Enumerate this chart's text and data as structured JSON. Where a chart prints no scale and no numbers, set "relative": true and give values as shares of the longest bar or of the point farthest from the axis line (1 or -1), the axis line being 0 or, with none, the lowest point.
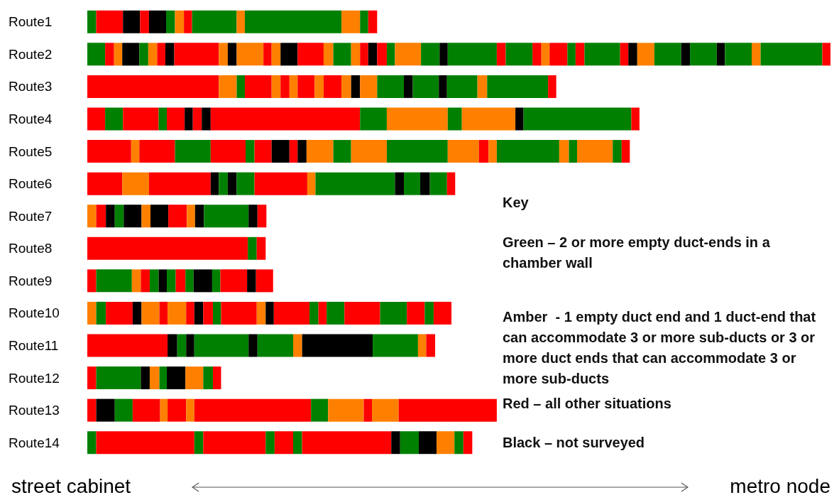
{
  "chart_data": {
    "type": "bar",
    "orientation": "horizontal",
    "stacked": true,
    "relative": true,
    "categories": [
      "Route1",
      "Route2",
      "Route3",
      "Route4",
      "Route5",
      "Route6",
      "Route7",
      "Route8",
      "Route9",
      "Route10",
      "Route11",
      "Route12",
      "Route13",
      "Route14"
    ],
    "annotations": [
      "Key",
      "Green – 2 or more empty duct-ends in a chamber wall",
      "Amber  - 1 empty duct end and 1 duct-end that can accommodate 3 or more sub-ducts or 3 or more duct ends that can accommodate 3 or more sub-ducts",
      "Red – all other situations",
      "Black – not surveyed",
      "street cabinet",
      "metro node"
    ],
    "series": [
      {
        "values": [
          0.012,
          0.024,
          0.177,
          0.024,
          0.059,
          0.047,
          0.012,
          0.216,
          0.012,
          0.012,
          0.108,
          0.012,
          0.012,
          0.012
        ],
        "colors": [
          "#008000",
          "#008000",
          "#ff0000",
          "#ff0000",
          "#ff0000",
          "#ff0000",
          "#ff8000",
          "#ff0000",
          "#ff0000",
          "#ff8000",
          "#ff0000",
          "#ff0000",
          "#ff0000",
          "#008000"
        ]
      },
      {
        "values": [
          0.036,
          0.012,
          0.024,
          0.024,
          0.011,
          0.036,
          0.013,
          0.012,
          0.048,
          0.013,
          0.013,
          0.06,
          0.025,
          0.132
        ],
        "colors": [
          "#ff0000",
          "#ff0000",
          "#ff8000",
          "#008000",
          "#ff8000",
          "#ff8000",
          "#ff0000",
          "#008000",
          "#008000",
          "#008000",
          "#000000",
          "#008000",
          "#000000",
          "#ff0000"
        ]
      },
      {
        "values": [
          0.023,
          0.011,
          0.011,
          0.048,
          0.048,
          0.083,
          0.012,
          0.012,
          0.012,
          0.036,
          0.012,
          0.012,
          0.024,
          0.012
        ],
        "colors": [
          "#000000",
          "#ff8000",
          "#008000",
          "#ff0000",
          "#ff0000",
          "#ff0000",
          "#000000",
          "#ff0000",
          "#ff8000",
          "#ff0000",
          "#008000",
          "#000000",
          "#008000",
          "#008000"
        ]
      },
      {
        "values": [
          0.012,
          0.023,
          0.036,
          0.011,
          0.048,
          0.011,
          0.012,
          null,
          0.012,
          0.012,
          0.011,
          0.013,
          0.037,
          0.084
        ],
        "colors": [
          "#ff0000",
          "#000000",
          "#ff0000",
          "#008000",
          "#008000",
          "#000000",
          "#008000",
          null,
          "#ff0000",
          "#000000",
          "#000000",
          "#ff8000",
          "#ff0000",
          "#ff0000"
        ]
      },
      {
        "values": [
          0.023,
          0.012,
          0.012,
          0.024,
          0.047,
          0.012,
          0.024,
          null,
          0.012,
          0.024,
          0.073,
          0.01,
          0.01,
          0.012
        ],
        "colors": [
          "#000000",
          "#008000",
          "#ff8000",
          "#ff0000",
          "#ff0000",
          "#008000",
          "#000000",
          null,
          "#008000",
          "#ff8000",
          "#008000",
          "#008000",
          "#ff8000",
          "#008000"
        ]
      },
      {
        "values": [
          0.012,
          0.012,
          0.012,
          0.011,
          0.012,
          0.012,
          0.012,
          null,
          0.011,
          0.011,
          0.012,
          0.025,
          0.025,
          0.025
        ],
        "colors": [
          "#008000",
          "#ff8000",
          "#ff0000",
          "#000000",
          "#008000",
          "#000000",
          "#ff8000",
          null,
          "#000000",
          "#ff0000",
          "#000000",
          "#000000",
          "#ff0000",
          "#ff0000"
        ]
      },
      {
        "values": [
          0.012,
          0.011,
          0.011,
          0.012,
          0.023,
          0.024,
          0.024,
          null,
          0.012,
          0.025,
          0.048,
          0.024,
          0.011,
          0.012
        ],
        "colors": [
          "#ff8000",
          "#ff0000",
          "#ff8000",
          "#ff0000",
          "#ff0000",
          "#008000",
          "#000000",
          null,
          "#008000",
          "#ff8000",
          "#008000",
          "#ff8000",
          "#ff8000",
          "#008000"
        ]
      },
      {
        "values": [
          0.011,
          0.012,
          0.023,
          0.012,
          0.024,
          0.071,
          0.025,
          null,
          0.013,
          0.011,
          0.012,
          0.013,
          0.157,
          0.12
        ],
        "colors": [
          "#ff0000",
          "#000000",
          "#ff0000",
          "#000000",
          "#000000",
          "#ff0000",
          "#ff0000",
          null,
          "#ff0000",
          "#ff0000",
          "#ff8000",
          "#008000",
          "#ff0000",
          "#ff0000"
        ]
      },
      {
        "values": [
          0.06,
          0.06,
          0.012,
          0.201,
          0.011,
          0.011,
          0.011,
          null,
          0.011,
          0.012,
          0.095,
          0.011,
          0.023,
          0.012
        ],
        "colors": [
          "#008000",
          "#ff0000",
          "#ff8000",
          "#ff0000",
          "#ff0000",
          "#ff8000",
          "#ff8000",
          null,
          "#008000",
          "#000000",
          "#000000",
          "#ff0000",
          "#008000",
          "#000000"
        ]
      },
      {
        "values": [
          0.011,
          0.012,
          0.024,
          0.036,
          0.012,
          0.107,
          0.012,
          null,
          0.025,
          0.013,
          0.061,
          null,
          0.048,
          0.025
        ],
        "colors": [
          "#ff8000",
          "#ff8000",
          "#ff0000",
          "#008000",
          "#000000",
          "#008000",
          "#000000",
          null,
          "#000000",
          "#ff0000",
          "#008000",
          null,
          "#ff8000",
          "#008000"
        ]
      },
      {
        "values": [
          0.13,
          0.012,
          0.013,
          0.082,
          0.036,
          0.012,
          0.06,
          null,
          0.011,
          0.011,
          0.011,
          null,
          0.011,
          0.024
        ],
        "colors": [
          "#008000",
          "#000000",
          "#ff8000",
          "#ff8000",
          "#ff8000",
          "#000000",
          "#008000",
          null,
          "#008000",
          "#008000",
          "#ff8000",
          null,
          "#ff0000",
          "#000000"
        ]
      },
      {
        "values": [
          0.025,
          0.036,
          0.012,
          0.019,
          0.024,
          0.022,
          0.012,
          null,
          0.036,
          0.048,
          0.012,
          null,
          0.036,
          0.024
        ],
        "colors": [
          "#ff8000",
          "#ff8000",
          "#000000",
          "#008000",
          "#008000",
          "#008000",
          "#000000",
          null,
          "#ff0000",
          "#ff0000",
          "#ff0000",
          null,
          "#ff8000",
          "#ff8000"
        ]
      },
      {
        "values": [
          0.011,
          0.011,
          0.023,
          0.072,
          0.048,
          0.013,
          0.012,
          null,
          0.012,
          0.012,
          null,
          null,
          0.132,
          0.012
        ],
        "colors": [
          "#008000",
          "#ff0000",
          "#ff8000",
          "#ff8000",
          "#ff8000",
          "#000000",
          "#ff0000",
          null,
          "#000000",
          "#ff8000",
          null,
          null,
          "#ff0000",
          "#008000"
        ]
      },
      {
        "values": [
          0.012,
          0.012,
          0.036,
          0.011,
          0.082,
          0.023,
          null,
          null,
          0.023,
          0.011,
          null,
          null,
          null,
          0.012
        ],
        "colors": [
          "#ff0000",
          "#ff8000",
          "#008000",
          "#000000",
          "#008000",
          "#008000",
          null,
          null,
          "#ff0000",
          "#000000",
          null,
          null,
          null,
          "#ff0000"
        ]
      },
      {
        "values": [
          null,
          0.023,
          0.012,
          0.145,
          0.042,
          0.011,
          null,
          null,
          null,
          0.048,
          null,
          null,
          null,
          null
        ],
        "colors": [
          null,
          "#000000",
          "#000000",
          "#008000",
          "#ff8000",
          "#ff0000",
          null,
          null,
          null,
          "#ff0000",
          null,
          null,
          null,
          null
        ]
      },
      {
        "values": [
          null,
          0.035,
          0.035,
          0.011,
          0.013,
          null,
          null,
          null,
          null,
          0.012,
          null,
          null,
          null,
          null
        ],
        "colors": [
          null,
          "#ff0000",
          "#008000",
          "#ff0000",
          "#ff0000",
          null,
          null,
          null,
          null,
          "#008000",
          null,
          null,
          null,
          null
        ]
      },
      {
        "values": [
          null,
          0.013,
          0.011,
          null,
          0.011,
          null,
          null,
          null,
          null,
          0.011,
          null,
          null,
          null,
          null
        ],
        "colors": [
          null,
          "#ff8000",
          "#000000",
          null,
          "#ff8000",
          null,
          null,
          null,
          null,
          "#ff0000",
          null,
          null,
          null,
          null
        ]
      },
      {
        "values": [
          null,
          0.024,
          0.041,
          null,
          0.084,
          null,
          null,
          null,
          null,
          0.024,
          null,
          null,
          null,
          null
        ],
        "colors": [
          null,
          "#008000",
          "#008000",
          null,
          "#008000",
          null,
          null,
          null,
          null,
          "#008000",
          null,
          null,
          null,
          null
        ]
      },
      {
        "values": [
          null,
          0.012,
          0.013,
          null,
          0.013,
          null,
          null,
          null,
          null,
          0.048,
          null,
          null,
          null,
          null
        ],
        "colors": [
          null,
          "#ff8000",
          "#ff8000",
          null,
          "#ff8000",
          null,
          null,
          null,
          null,
          "#ff0000",
          null,
          null,
          null,
          null
        ]
      },
      {
        "values": [
          null,
          0.011,
          0.082,
          null,
          0.011,
          null,
          null,
          null,
          null,
          0.036,
          null,
          null,
          null,
          null
        ],
        "colors": [
          null,
          "#ff0000",
          "#008000",
          null,
          "#008000",
          null,
          null,
          null,
          null,
          "#008000",
          null,
          null,
          null,
          null
        ]
      },
      {
        "values": [
          null,
          0.012,
          0.011,
          null,
          0.048,
          null,
          null,
          null,
          null,
          0.024,
          null,
          null,
          null,
          null
        ],
        "colors": [
          null,
          "#000000",
          "#ff0000",
          null,
          "#ff8000",
          null,
          null,
          null,
          null,
          "#ff0000",
          null,
          null,
          null,
          null
        ]
      },
      {
        "values": [
          null,
          0.013,
          null,
          null,
          0.012,
          null,
          null,
          null,
          null,
          0.012,
          null,
          null,
          null,
          null
        ],
        "colors": [
          null,
          "#ff0000",
          null,
          null,
          "#008000",
          null,
          null,
          null,
          null,
          "#008000",
          null,
          null,
          null,
          null
        ]
      },
      {
        "values": [
          null,
          0.011,
          null,
          null,
          0.011,
          null,
          null,
          null,
          null,
          0.024,
          null,
          null,
          null,
          null
        ],
        "colors": [
          null,
          "#008000",
          null,
          null,
          "#ff0000",
          null,
          null,
          null,
          null,
          "#ff0000",
          null,
          null,
          null,
          null
        ]
      },
      {
        "values": [
          null,
          0.035,
          null,
          null,
          null,
          null,
          null,
          null,
          null,
          null,
          null,
          null,
          null,
          null
        ],
        "color": "#ff8000"
      },
      {
        "values": [
          null,
          0.025,
          null,
          null,
          null,
          null,
          null,
          null,
          null,
          null,
          null,
          null,
          null,
          null
        ],
        "color": "#008000"
      },
      {
        "values": [
          null,
          0.011,
          null,
          null,
          null,
          null,
          null,
          null,
          null,
          null,
          null,
          null,
          null,
          null
        ],
        "color": "#000000"
      },
      {
        "values": [
          null,
          0.066,
          null,
          null,
          null,
          null,
          null,
          null,
          null,
          null,
          null,
          null,
          null,
          null
        ],
        "color": "#008000"
      },
      {
        "values": [
          null,
          0.012,
          null,
          null,
          null,
          null,
          null,
          null,
          null,
          null,
          null,
          null,
          null,
          null
        ],
        "color": "#ff0000"
      },
      {
        "values": [
          null,
          0.036,
          null,
          null,
          null,
          null,
          null,
          null,
          null,
          null,
          null,
          null,
          null,
          null
        ],
        "color": "#008000"
      },
      {
        "values": [
          null,
          0.012,
          null,
          null,
          null,
          null,
          null,
          null,
          null,
          null,
          null,
          null,
          null,
          null
        ],
        "color": "#ff0000"
      },
      {
        "values": [
          null,
          0.011,
          null,
          null,
          null,
          null,
          null,
          null,
          null,
          null,
          null,
          null,
          null,
          null
        ],
        "color": "#ff8000"
      },
      {
        "values": [
          null,
          0.024,
          null,
          null,
          null,
          null,
          null,
          null,
          null,
          null,
          null,
          null,
          null,
          null
        ],
        "color": "#ff0000"
      },
      {
        "values": [
          null,
          0.011,
          null,
          null,
          null,
          null,
          null,
          null,
          null,
          null,
          null,
          null,
          null,
          null
        ],
        "color": "#008000"
      },
      {
        "values": [
          null,
          0.012,
          null,
          null,
          null,
          null,
          null,
          null,
          null,
          null,
          null,
          null,
          null,
          null
        ],
        "color": "#ff0000"
      },
      {
        "values": [
          null,
          0.048,
          null,
          null,
          null,
          null,
          null,
          null,
          null,
          null,
          null,
          null,
          null,
          null
        ],
        "color": "#008000"
      },
      {
        "values": [
          null,
          0.011,
          null,
          null,
          null,
          null,
          null,
          null,
          null,
          null,
          null,
          null,
          null,
          null
        ],
        "color": "#ff0000"
      },
      {
        "values": [
          null,
          0.012,
          null,
          null,
          null,
          null,
          null,
          null,
          null,
          null,
          null,
          null,
          null,
          null
        ],
        "color": "#000000"
      },
      {
        "values": [
          null,
          0.023,
          null,
          null,
          null,
          null,
          null,
          null,
          null,
          null,
          null,
          null,
          null,
          null
        ],
        "color": "#ff8000"
      },
      {
        "values": [
          null,
          0.036,
          null,
          null,
          null,
          null,
          null,
          null,
          null,
          null,
          null,
          null,
          null,
          null
        ],
        "color": "#008000"
      },
      {
        "values": [
          null,
          0.012,
          null,
          null,
          null,
          null,
          null,
          null,
          null,
          null,
          null,
          null,
          null,
          null
        ],
        "color": "#000000"
      },
      {
        "values": [
          null,
          0.036,
          null,
          null,
          null,
          null,
          null,
          null,
          null,
          null,
          null,
          null,
          null,
          null
        ],
        "color": "#008000"
      },
      {
        "values": [
          null,
          0.011,
          null,
          null,
          null,
          null,
          null,
          null,
          null,
          null,
          null,
          null,
          null,
          null
        ],
        "color": "#000000"
      },
      {
        "values": [
          null,
          0.036,
          null,
          null,
          null,
          null,
          null,
          null,
          null,
          null,
          null,
          null,
          null,
          null
        ],
        "color": "#008000"
      },
      {
        "values": [
          null,
          0.012,
          null,
          null,
          null,
          null,
          null,
          null,
          null,
          null,
          null,
          null,
          null,
          null
        ],
        "color": "#ff8000"
      },
      {
        "values": [
          null,
          0.083,
          null,
          null,
          null,
          null,
          null,
          null,
          null,
          null,
          null,
          null,
          null,
          null
        ],
        "color": "#008000"
      },
      {
        "values": [
          null,
          0.011,
          null,
          null,
          null,
          null,
          null,
          null,
          null,
          null,
          null,
          null,
          null,
          null
        ],
        "color": "#ff0000"
      }
    ]
  }
}
